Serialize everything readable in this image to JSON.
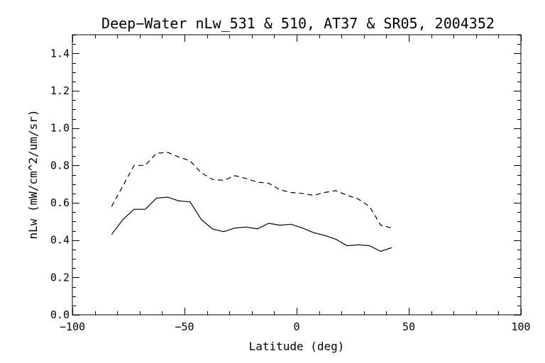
{
  "chart_data": {
    "type": "line",
    "title": "Deep−Water nLw_531 & 510, AT37 & SR05, 2004352",
    "xlabel": "Latitude (deg)",
    "ylabel": "nLw (mW/cm^2/um/sr)",
    "xlim": [
      -100,
      100
    ],
    "ylim": [
      0.0,
      1.5
    ],
    "x_ticks": [
      -100,
      -50,
      0,
      50,
      100
    ],
    "x_tick_labels": [
      "−100",
      "−50",
      "0",
      "50",
      "100"
    ],
    "y_ticks": [
      0.0,
      0.2,
      0.4,
      0.6,
      0.8,
      1.0,
      1.2,
      1.4
    ],
    "y_tick_labels": [
      "0.0",
      "0.2",
      "0.4",
      "0.6",
      "0.8",
      "1.0",
      "1.2",
      "1.4"
    ],
    "grid": false,
    "legend": "none",
    "series": [
      {
        "line_style": "solid",
        "color": "#000000",
        "x": [
          -82.5,
          -77.5,
          -72.5,
          -67.5,
          -62.5,
          -57.5,
          -52.5,
          -47.5,
          -42.5,
          -37.5,
          -32.5,
          -27.5,
          -22.5,
          -17.5,
          -12.5,
          -7.5,
          -2.5,
          2.5,
          7.5,
          12.5,
          17.5,
          22.5,
          27.5,
          32.5,
          37.5,
          42.5
        ],
        "values": [
          0.43,
          0.51,
          0.565,
          0.565,
          0.625,
          0.63,
          0.61,
          0.605,
          0.51,
          0.46,
          0.445,
          0.465,
          0.47,
          0.46,
          0.49,
          0.48,
          0.485,
          0.465,
          0.44,
          0.425,
          0.405,
          0.37,
          0.375,
          0.37,
          0.34,
          0.36
        ]
      },
      {
        "line_style": "dashed",
        "color": "#000000",
        "x": [
          -82.5,
          -77.5,
          -72.5,
          -67.5,
          -62.5,
          -57.5,
          -52.5,
          -47.5,
          -42.5,
          -37.5,
          -32.5,
          -27.5,
          -22.5,
          -17.5,
          -12.5,
          -7.5,
          -2.5,
          2.5,
          7.5,
          12.5,
          17.5,
          22.5,
          27.5,
          32.5,
          37.5,
          42.5
        ],
        "values": [
          0.58,
          0.69,
          0.8,
          0.8,
          0.865,
          0.87,
          0.845,
          0.825,
          0.76,
          0.725,
          0.72,
          0.745,
          0.73,
          0.71,
          0.705,
          0.67,
          0.655,
          0.65,
          0.64,
          0.655,
          0.665,
          0.64,
          0.62,
          0.58,
          0.48,
          0.465
        ]
      }
    ]
  }
}
